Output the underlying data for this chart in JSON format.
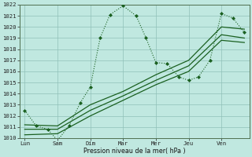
{
  "xlabel": "Pression niveau de la mer( hPa )",
  "bg_color": "#c0e8e0",
  "plot_bg_color": "#c0e8e0",
  "grid_color": "#90c0b8",
  "line_color": "#1a6020",
  "ylim": [
    1010,
    1022
  ],
  "yticks": [
    1010,
    1011,
    1012,
    1013,
    1014,
    1015,
    1016,
    1017,
    1018,
    1019,
    1020,
    1021,
    1022
  ],
  "x_labels": [
    "Lun",
    "Sam",
    "Dim",
    "Mar",
    "Mer",
    "Jeu",
    "Ven"
  ],
  "x_positions": [
    0,
    1,
    2,
    3,
    4,
    5,
    6
  ],
  "xlim": [
    -0.15,
    6.85
  ],
  "series1": {
    "x": [
      0.0,
      0.35,
      0.7,
      1.0,
      1.35,
      1.7,
      2.0,
      2.3,
      2.6,
      3.0,
      3.4,
      3.7,
      4.0,
      4.35,
      4.7,
      5.0,
      5.3,
      5.65,
      6.0,
      6.35,
      6.7
    ],
    "y": [
      1012.5,
      1011.1,
      1010.8,
      1009.8,
      1011.1,
      1013.2,
      1014.6,
      1019.0,
      1021.1,
      1021.9,
      1021.0,
      1019.0,
      1016.8,
      1016.7,
      1015.5,
      1015.2,
      1015.5,
      1017.0,
      1021.2,
      1020.8,
      1019.5
    ]
  },
  "series2": {
    "x": [
      0.0,
      1.0,
      2.0,
      3.0,
      4.0,
      5.0,
      6.0,
      6.7
    ],
    "y": [
      1011.2,
      1011.1,
      1013.0,
      1014.2,
      1015.7,
      1017.0,
      1020.0,
      1019.8
    ]
  },
  "series3": {
    "x": [
      0.0,
      1.0,
      2.0,
      3.0,
      4.0,
      5.0,
      6.0,
      6.7
    ],
    "y": [
      1010.8,
      1010.8,
      1012.5,
      1013.8,
      1015.2,
      1016.5,
      1019.3,
      1019.0
    ]
  },
  "series4": {
    "x": [
      0.0,
      1.0,
      2.0,
      3.0,
      4.0,
      5.0,
      6.0,
      6.7
    ],
    "y": [
      1010.3,
      1010.4,
      1012.0,
      1013.4,
      1014.8,
      1016.0,
      1018.8,
      1018.6
    ]
  }
}
